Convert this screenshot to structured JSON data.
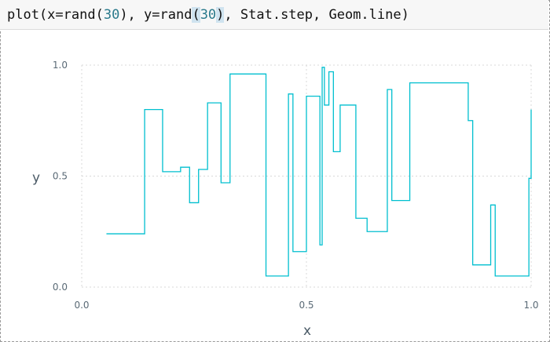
{
  "code": {
    "prefix": "plot(x=rand(",
    "arg1": "30",
    "middle": "), y=rand",
    "open_paren": "(",
    "arg2": "30",
    "close_paren": ")",
    "suffix": ", Stat.step, Geom.line)"
  },
  "chart_data": {
    "type": "line",
    "style": "step",
    "color": "#00bfcf",
    "xlabel": "x",
    "ylabel": "y",
    "xlim": [
      0.0,
      1.0
    ],
    "ylim": [
      0.0,
      1.0
    ],
    "x_ticks": [
      "0.0",
      "0.5",
      "1.0"
    ],
    "y_ticks": [
      "0.0",
      "0.5",
      "1.0"
    ],
    "grid": true,
    "series": [
      {
        "x": [
          0.055,
          0.14,
          0.18,
          0.22,
          0.24,
          0.26,
          0.28,
          0.31,
          0.33,
          0.41,
          0.46,
          0.47,
          0.5,
          0.53,
          0.535,
          0.54,
          0.55,
          0.56,
          0.575,
          0.61,
          0.635,
          0.68,
          0.69,
          0.73,
          0.85,
          0.86,
          0.87,
          0.91,
          0.92,
          0.98,
          0.995,
          1.0
        ],
        "y": [
          0.24,
          0.8,
          0.52,
          0.54,
          0.38,
          0.53,
          0.83,
          0.47,
          0.96,
          0.05,
          0.87,
          0.16,
          0.86,
          0.19,
          0.99,
          0.82,
          0.97,
          0.61,
          0.82,
          0.31,
          0.25,
          0.89,
          0.39,
          0.92,
          0.92,
          0.75,
          0.1,
          0.37,
          0.05,
          0.05,
          0.49,
          0.8
        ]
      }
    ]
  }
}
